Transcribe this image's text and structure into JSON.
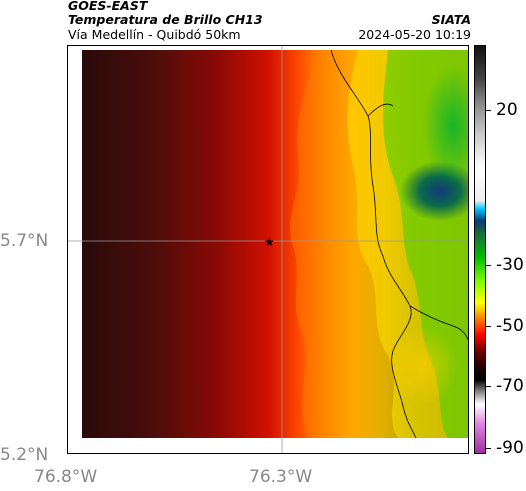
{
  "header": {
    "satellite": "GOES-EAST",
    "product": "Temperatura de Brillo CH13",
    "region": "Vía Medellín - Quibdó 50km",
    "agency": "SIATA",
    "datetime": "2024-05-20 10:19"
  },
  "map": {
    "lat_labels": [
      "5.7°N",
      "5.2°N"
    ],
    "lon_labels": [
      "76.8°W",
      "76.3°W"
    ],
    "marker": "star-marker"
  },
  "colorbar": {
    "labels": [
      "20",
      "-30",
      "-50",
      "-70",
      "-90"
    ],
    "colors": [
      "#3a0a0a",
      "#b40000",
      "#ff3300",
      "#ffdd00",
      "#00cc00",
      "#0a6a3a",
      "#0a3a7a",
      "#0099cc",
      "#ffffff",
      "#222222",
      "#cc33cc"
    ]
  }
}
